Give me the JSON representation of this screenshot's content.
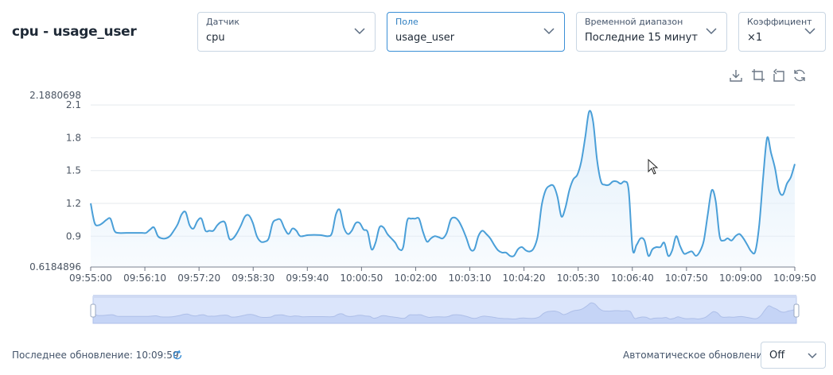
{
  "page": {
    "title": "cpu - usage_user"
  },
  "fields": [
    {
      "label": "Датчик",
      "value": "cpu"
    },
    {
      "label": "Поле",
      "value": "usage_user"
    },
    {
      "label": "Временной диапазон",
      "value": "Последние 15 минут"
    },
    {
      "label": "Коэффициент",
      "value": "×1"
    }
  ],
  "toolbar": {
    "icons": [
      "download-icon",
      "zoom-select-icon",
      "zoom-reset-icon",
      "restore-icon"
    ]
  },
  "footer": {
    "last_update_label": "Последнее обновление: 10:09:59",
    "auto_update_label": "Автоматическое обновление:",
    "auto_update_value": "Off"
  },
  "colors": {
    "line": "#4a9fd8",
    "area": "#e3f0fb",
    "grid": "#e5e9ee",
    "accent": "#3b8fd6",
    "slider_fill": "#dbe5fb",
    "slider_border": "#b9c9ee"
  },
  "chart_data": {
    "type": "area",
    "ylim": [
      0.6184896,
      2.1880698
    ],
    "y_tick_labels": [
      "0.6184896",
      "0.9",
      "1.2",
      "1.5",
      "1.8",
      "2.1",
      "2.1880698"
    ],
    "x_tick_labels": [
      "09:55:00",
      "09:56:10",
      "09:57:20",
      "09:58:30",
      "09:59:40",
      "10:00:50",
      "10:02:00",
      "10:03:10",
      "10:04:20",
      "10:05:30",
      "10:06:40",
      "10:07:50",
      "10:09:00",
      "10:09:50"
    ],
    "x_range_seconds": 890,
    "series": [
      {
        "points": [
          [
            0,
            1.2
          ],
          [
            5,
            1.02
          ],
          [
            10,
            1.0
          ],
          [
            15,
            1.02
          ],
          [
            20,
            1.05
          ],
          [
            25,
            1.06
          ],
          [
            30,
            0.95
          ],
          [
            35,
            0.93
          ],
          [
            45,
            0.93
          ],
          [
            55,
            0.93
          ],
          [
            65,
            0.93
          ],
          [
            70,
            0.93
          ],
          [
            75,
            0.96
          ],
          [
            80,
            0.98
          ],
          [
            85,
            0.9
          ],
          [
            90,
            0.88
          ],
          [
            95,
            0.88
          ],
          [
            100,
            0.9
          ],
          [
            105,
            0.95
          ],
          [
            110,
            1.01
          ],
          [
            115,
            1.1
          ],
          [
            120,
            1.12
          ],
          [
            125,
            1.0
          ],
          [
            130,
            0.97
          ],
          [
            135,
            1.04
          ],
          [
            140,
            1.06
          ],
          [
            145,
            0.95
          ],
          [
            150,
            0.95
          ],
          [
            155,
            0.95
          ],
          [
            160,
            1.0
          ],
          [
            165,
            1.03
          ],
          [
            170,
            1.02
          ],
          [
            175,
            0.88
          ],
          [
            180,
            0.88
          ],
          [
            185,
            0.93
          ],
          [
            190,
            1.0
          ],
          [
            195,
            1.08
          ],
          [
            200,
            1.09
          ],
          [
            205,
            1.02
          ],
          [
            210,
            0.9
          ],
          [
            215,
            0.85
          ],
          [
            220,
            0.85
          ],
          [
            225,
            0.88
          ],
          [
            230,
            1.02
          ],
          [
            235,
            1.05
          ],
          [
            240,
            1.05
          ],
          [
            245,
            0.97
          ],
          [
            250,
            0.92
          ],
          [
            255,
            0.97
          ],
          [
            260,
            0.95
          ],
          [
            265,
            0.9
          ],
          [
            275,
            0.91
          ],
          [
            290,
            0.91
          ],
          [
            300,
            0.9
          ],
          [
            305,
            0.93
          ],
          [
            310,
            1.1
          ],
          [
            315,
            1.14
          ],
          [
            320,
            0.98
          ],
          [
            325,
            0.92
          ],
          [
            330,
            0.95
          ],
          [
            335,
            1.02
          ],
          [
            340,
            1.02
          ],
          [
            345,
            0.96
          ],
          [
            350,
            0.94
          ],
          [
            355,
            0.78
          ],
          [
            360,
            0.84
          ],
          [
            365,
            0.98
          ],
          [
            370,
            0.98
          ],
          [
            375,
            0.92
          ],
          [
            380,
            0.88
          ],
          [
            385,
            0.84
          ],
          [
            390,
            0.78
          ],
          [
            395,
            0.8
          ],
          [
            400,
            1.04
          ],
          [
            405,
            1.06
          ],
          [
            410,
            1.06
          ],
          [
            415,
            1.06
          ],
          [
            420,
            0.94
          ],
          [
            425,
            0.85
          ],
          [
            430,
            0.88
          ],
          [
            435,
            0.9
          ],
          [
            440,
            0.89
          ],
          [
            445,
            0.88
          ],
          [
            450,
            0.93
          ],
          [
            455,
            1.05
          ],
          [
            460,
            1.07
          ],
          [
            465,
            1.04
          ],
          [
            470,
            0.97
          ],
          [
            475,
            0.88
          ],
          [
            480,
            0.78
          ],
          [
            485,
            0.78
          ],
          [
            490,
            0.9
          ],
          [
            495,
            0.95
          ],
          [
            500,
            0.92
          ],
          [
            505,
            0.88
          ],
          [
            510,
            0.82
          ],
          [
            515,
            0.77
          ],
          [
            520,
            0.75
          ],
          [
            525,
            0.75
          ],
          [
            530,
            0.72
          ],
          [
            535,
            0.72
          ],
          [
            540,
            0.78
          ],
          [
            545,
            0.8
          ],
          [
            550,
            0.77
          ],
          [
            555,
            0.76
          ],
          [
            560,
            0.79
          ],
          [
            565,
            0.9
          ],
          [
            570,
            1.18
          ],
          [
            575,
            1.32
          ],
          [
            580,
            1.36
          ],
          [
            585,
            1.36
          ],
          [
            590,
            1.26
          ],
          [
            595,
            1.08
          ],
          [
            600,
            1.16
          ],
          [
            605,
            1.32
          ],
          [
            610,
            1.42
          ],
          [
            615,
            1.46
          ],
          [
            620,
            1.58
          ],
          [
            625,
            1.8
          ],
          [
            630,
            2.04
          ],
          [
            635,
            1.95
          ],
          [
            640,
            1.6
          ],
          [
            645,
            1.4
          ],
          [
            650,
            1.37
          ],
          [
            655,
            1.37
          ],
          [
            660,
            1.4
          ],
          [
            665,
            1.4
          ],
          [
            670,
            1.38
          ],
          [
            675,
            1.4
          ],
          [
            680,
            1.32
          ],
          [
            685,
            0.78
          ],
          [
            690,
            0.82
          ],
          [
            695,
            0.88
          ],
          [
            700,
            0.86
          ],
          [
            705,
            0.72
          ],
          [
            710,
            0.78
          ],
          [
            715,
            0.8
          ],
          [
            720,
            0.8
          ],
          [
            725,
            0.84
          ],
          [
            730,
            0.72
          ],
          [
            735,
            0.77
          ],
          [
            740,
            0.9
          ],
          [
            745,
            0.81
          ],
          [
            750,
            0.74
          ],
          [
            755,
            0.75
          ],
          [
            760,
            0.76
          ],
          [
            765,
            0.72
          ],
          [
            770,
            0.76
          ],
          [
            775,
            0.86
          ],
          [
            780,
            1.1
          ],
          [
            785,
            1.32
          ],
          [
            790,
            1.22
          ],
          [
            795,
            0.9
          ],
          [
            800,
            0.86
          ],
          [
            805,
            0.88
          ],
          [
            810,
            0.86
          ],
          [
            815,
            0.9
          ],
          [
            820,
            0.92
          ],
          [
            825,
            0.88
          ],
          [
            830,
            0.82
          ],
          [
            835,
            0.76
          ],
          [
            840,
            0.76
          ],
          [
            845,
            1.0
          ],
          [
            850,
            1.44
          ],
          [
            855,
            1.8
          ],
          [
            860,
            1.66
          ],
          [
            865,
            1.52
          ],
          [
            870,
            1.32
          ],
          [
            875,
            1.28
          ],
          [
            880,
            1.38
          ],
          [
            885,
            1.44
          ],
          [
            890,
            1.56
          ]
        ]
      }
    ]
  }
}
